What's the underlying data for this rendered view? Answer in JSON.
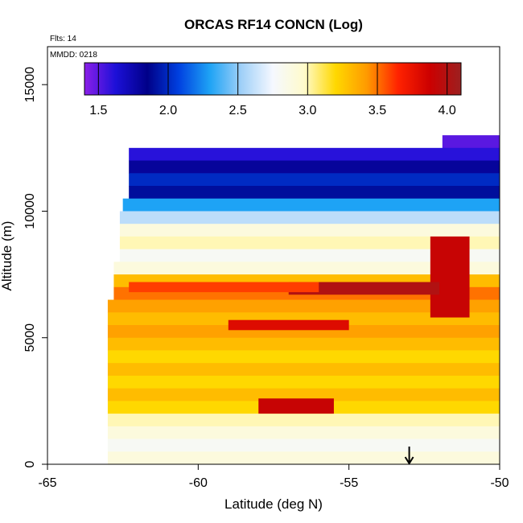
{
  "chart_data": {
    "type": "heatmap",
    "title": "ORCAS RF14 CONCN (Log)",
    "annotations": {
      "flights": "Flts: 14",
      "date": "MMDD: 0218"
    },
    "xlabel": "Latitude (deg N)",
    "ylabel": "Altitude (m)",
    "xlim": [
      -65,
      -50
    ],
    "ylim": [
      0,
      16500
    ],
    "x_ticks": [
      -65,
      -60,
      -55,
      -50
    ],
    "x_tick_labels": [
      "-65",
      "-60",
      "-55",
      "-50"
    ],
    "y_ticks": [
      0,
      5000,
      10000,
      15000
    ],
    "y_tick_labels": [
      "0",
      "5000",
      "10000",
      "15000"
    ],
    "colorbar": {
      "range": [
        1.4,
        4.1
      ],
      "ticks": [
        1.5,
        2.0,
        2.5,
        3.0,
        3.5,
        4.0
      ],
      "tick_labels": [
        "1.5",
        "2.0",
        "2.5",
        "3.0",
        "3.5",
        "4.0"
      ],
      "colors": [
        "#8b1fe8",
        "#1c10d8",
        "#000088",
        "#0040e0",
        "#1ea3f5",
        "#a0d0f8",
        "#f5f8ff",
        "#fffbcc",
        "#ffd800",
        "#ff9a00",
        "#ff2200",
        "#cc0000",
        "#9c2020"
      ]
    },
    "rows": [
      {
        "alt": 12500,
        "lat_start": -51.9,
        "lat_end": -50.0,
        "value": 1.5
      },
      {
        "alt": 12000,
        "lat_start": -62.3,
        "lat_end": -50.0,
        "value": 1.6
      },
      {
        "alt": 11500,
        "lat_start": -62.3,
        "lat_end": -50.0,
        "value": 1.8
      },
      {
        "alt": 11000,
        "lat_start": -62.3,
        "lat_end": -50.0,
        "value": 2.0
      },
      {
        "alt": 10500,
        "lat_start": -62.3,
        "lat_end": -50.0,
        "value": 1.9
      },
      {
        "alt": 10000,
        "lat_start": -62.5,
        "lat_end": -50.0,
        "value": 2.3
      },
      {
        "alt": 9500,
        "lat_start": -62.6,
        "lat_end": -50.0,
        "value": 2.6
      },
      {
        "alt": 9000,
        "lat_start": -62.6,
        "lat_end": -50.0,
        "value": 2.9
      },
      {
        "alt": 8500,
        "lat_start": -62.6,
        "lat_end": -50.0,
        "value": 3.0
      },
      {
        "alt": 8000,
        "lat_start": -62.6,
        "lat_end": -50.0,
        "value": 2.8
      },
      {
        "alt": 7500,
        "lat_start": -62.8,
        "lat_end": -50.0,
        "value": 2.9
      },
      {
        "alt": 7000,
        "lat_start": -62.8,
        "lat_end": -50.0,
        "value": 3.3
      },
      {
        "alt": 6500,
        "lat_start": -62.8,
        "lat_end": -50.0,
        "value": 3.5
      },
      {
        "alt": 6000,
        "lat_start": -63.0,
        "lat_end": -50.0,
        "value": 3.4
      },
      {
        "alt": 5500,
        "lat_start": -63.0,
        "lat_end": -50.0,
        "value": 3.3
      },
      {
        "alt": 5000,
        "lat_start": -63.0,
        "lat_end": -50.0,
        "value": 3.4
      },
      {
        "alt": 4500,
        "lat_start": -63.0,
        "lat_end": -50.0,
        "value": 3.3
      },
      {
        "alt": 4000,
        "lat_start": -63.0,
        "lat_end": -50.0,
        "value": 3.2
      },
      {
        "alt": 3500,
        "lat_start": -63.0,
        "lat_end": -50.0,
        "value": 3.3
      },
      {
        "alt": 3000,
        "lat_start": -63.0,
        "lat_end": -50.0,
        "value": 3.2
      },
      {
        "alt": 2500,
        "lat_start": -63.0,
        "lat_end": -50.0,
        "value": 3.3
      },
      {
        "alt": 2000,
        "lat_start": -63.0,
        "lat_end": -50.0,
        "value": 3.2
      },
      {
        "alt": 1500,
        "lat_start": -63.0,
        "lat_end": -50.0,
        "value": 3.0
      },
      {
        "alt": 1000,
        "lat_start": -63.0,
        "lat_end": -50.0,
        "value": 2.9
      },
      {
        "alt": 500,
        "lat_start": -63.0,
        "lat_end": -50.0,
        "value": 2.8
      },
      {
        "alt": 0,
        "lat_start": -63.0,
        "lat_end": -50.0,
        "value": 2.9
      }
    ],
    "hotspots": [
      {
        "lat_start": -52.3,
        "lat_end": -51.0,
        "alt_start": 5800,
        "alt_end": 9000,
        "value": 3.9
      },
      {
        "lat_start": -57.0,
        "lat_end": -52.0,
        "alt_start": 6700,
        "alt_end": 7200,
        "value": 4.0
      },
      {
        "lat_start": -58.0,
        "lat_end": -55.5,
        "alt_start": 2000,
        "alt_end": 2600,
        "value": 3.9
      },
      {
        "lat_start": -59.0,
        "lat_end": -55.0,
        "alt_start": 5300,
        "alt_end": 5700,
        "value": 3.8
      },
      {
        "lat_start": -62.3,
        "lat_end": -56.0,
        "alt_start": 6800,
        "alt_end": 7200,
        "value": 3.6
      }
    ],
    "marker": {
      "lat": -53.0,
      "label": "arrow"
    },
    "grid": false
  }
}
